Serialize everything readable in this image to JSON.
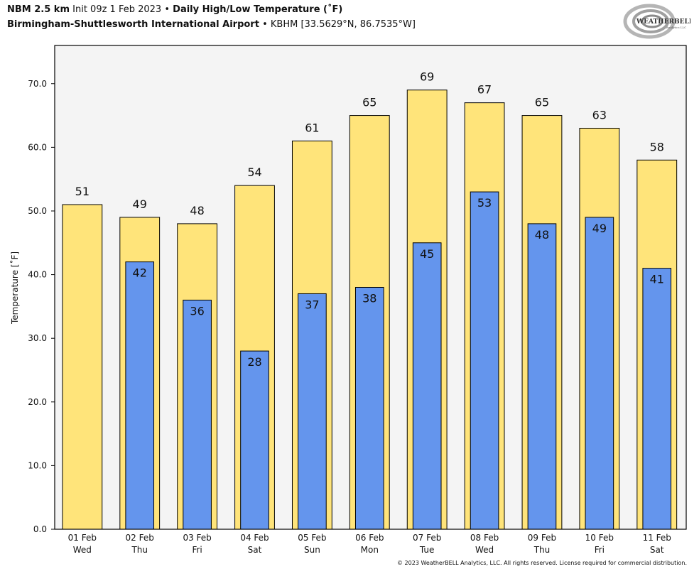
{
  "header": {
    "model": "NBM 2.5 km",
    "init": "Init 09z 1 Feb 2023",
    "separator": "•",
    "product": "Daily High/Low Temperature (˚F)",
    "station_name": "Birmingham-Shuttlesworth International Airport",
    "station_info": "KBHM [33.5629°N, 86.7535°W]"
  },
  "logo": {
    "text_main": "WEATHERBELL",
    "text_sub": "Analytics LLC",
    "icon": "swirl-logo-icon"
  },
  "footer": {
    "copyright": "© 2023 WeatherBELL Analytics, LLC. All rights reserved. License required for commercial distribution."
  },
  "colors": {
    "high": "#FFE47A",
    "low": "#6495ED",
    "plot_bg": "#F4F4F4",
    "edge": "#000000"
  },
  "chart_data": {
    "type": "bar",
    "title": "Daily High/Low Temperature (˚F)",
    "xlabel": "",
    "ylabel": "Temperature [˚F]",
    "ylim": [
      0,
      76
    ],
    "yticks": [
      0,
      10,
      20,
      30,
      40,
      50,
      60,
      70
    ],
    "ytick_labels": [
      "0.0",
      "10.0",
      "20.0",
      "30.0",
      "40.0",
      "50.0",
      "60.0",
      "70.0"
    ],
    "grid": false,
    "categories": [
      {
        "date": "01 Feb",
        "day": "Wed"
      },
      {
        "date": "02 Feb",
        "day": "Thu"
      },
      {
        "date": "03 Feb",
        "day": "Fri"
      },
      {
        "date": "04 Feb",
        "day": "Sat"
      },
      {
        "date": "05 Feb",
        "day": "Sun"
      },
      {
        "date": "06 Feb",
        "day": "Mon"
      },
      {
        "date": "07 Feb",
        "day": "Tue"
      },
      {
        "date": "08 Feb",
        "day": "Wed"
      },
      {
        "date": "09 Feb",
        "day": "Thu"
      },
      {
        "date": "10 Feb",
        "day": "Fri"
      },
      {
        "date": "11 Feb",
        "day": "Sat"
      }
    ],
    "series": [
      {
        "name": "High",
        "values": [
          51,
          49,
          48,
          54,
          61,
          65,
          69,
          67,
          65,
          63,
          58
        ]
      },
      {
        "name": "Low",
        "values": [
          null,
          42,
          36,
          28,
          37,
          38,
          45,
          53,
          48,
          49,
          41
        ]
      }
    ]
  }
}
